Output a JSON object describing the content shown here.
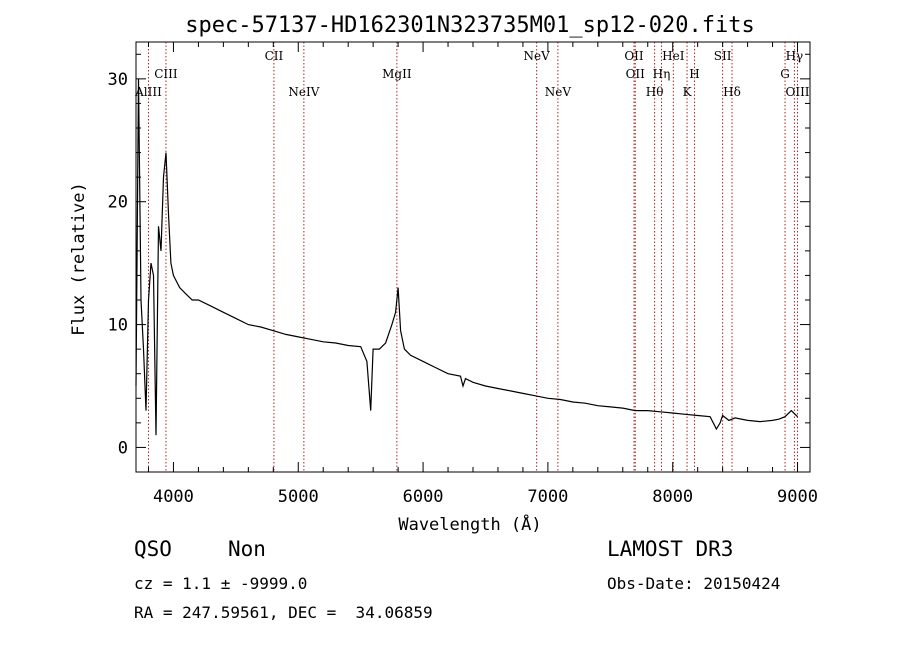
{
  "chart_data": {
    "type": "line",
    "title": "spec-57137-HD162301N323735M01_sp12-020.fits",
    "xlabel": "Wavelength (Å)",
    "ylabel": "Flux (relative)",
    "xlim": [
      3700,
      9100
    ],
    "ylim": [
      -2,
      33
    ],
    "x_ticks": [
      4000,
      5000,
      6000,
      7000,
      8000,
      9000
    ],
    "y_ticks": [
      0,
      10,
      20,
      30
    ],
    "x_tick_labels": [
      "4000",
      "5000",
      "6000",
      "7000",
      "8000",
      "9000"
    ],
    "y_tick_labels": [
      "0",
      "10",
      "20",
      "30"
    ],
    "grid": false,
    "series": [
      {
        "color": "#000000",
        "x": [
          3700,
          3720,
          3740,
          3760,
          3780,
          3800,
          3820,
          3840,
          3860,
          3880,
          3900,
          3920,
          3940,
          3960,
          3980,
          4000,
          4050,
          4100,
          4150,
          4200,
          4300,
          4400,
          4500,
          4600,
          4700,
          4800,
          4900,
          5000,
          5100,
          5200,
          5300,
          5400,
          5500,
          5550,
          5580,
          5600,
          5650,
          5700,
          5750,
          5780,
          5800,
          5820,
          5850,
          5900,
          6000,
          6100,
          6200,
          6300,
          6320,
          6340,
          6400,
          6500,
          6600,
          6700,
          6800,
          6900,
          7000,
          7100,
          7200,
          7300,
          7400,
          7500,
          7600,
          7700,
          7800,
          7900,
          8000,
          8100,
          8200,
          8300,
          8350,
          8380,
          8400,
          8450,
          8500,
          8600,
          8700,
          8800,
          8850,
          8900,
          8950,
          9000
        ],
        "y": [
          5,
          30,
          12,
          8,
          3,
          12,
          15,
          14,
          1,
          18,
          16,
          22,
          24,
          19,
          15,
          14,
          13,
          12.5,
          12,
          12,
          11.5,
          11,
          10.5,
          10,
          9.8,
          9.5,
          9.2,
          9,
          8.8,
          8.6,
          8.5,
          8.3,
          8.2,
          7,
          3,
          8,
          8,
          8.5,
          10,
          11,
          13,
          9.5,
          8,
          7.5,
          7,
          6.5,
          6,
          5.8,
          5,
          5.6,
          5.3,
          5,
          4.8,
          4.6,
          4.4,
          4.2,
          4,
          3.9,
          3.7,
          3.6,
          3.4,
          3.3,
          3.2,
          3,
          3,
          2.9,
          2.8,
          2.7,
          2.6,
          2.5,
          1.5,
          2,
          2.6,
          2.2,
          2.4,
          2.2,
          2.1,
          2.2,
          2.3,
          2.5,
          3,
          2.5
        ]
      }
    ],
    "line_color": "#b22222",
    "lines": [
      {
        "name": "AlIII",
        "x": 3800,
        "row": 3
      },
      {
        "name": "CIII",
        "x": 3940,
        "row": 2
      },
      {
        "name": "CII",
        "x": 4805,
        "row": 1
      },
      {
        "name": "NeIV",
        "x": 5045,
        "row": 3
      },
      {
        "name": "MgII",
        "x": 5790,
        "row": 2
      },
      {
        "name": "NeV",
        "x": 6910,
        "row": 1
      },
      {
        "name": "NeV",
        "x": 7080,
        "row": 3
      },
      {
        "name": "OII",
        "x": 7690,
        "row": 1
      },
      {
        "name": "OII",
        "x": 7700,
        "row": 2
      },
      {
        "name": "Hθ",
        "x": 7855,
        "row": 3
      },
      {
        "name": "Hη",
        "x": 7910,
        "row": 2
      },
      {
        "name": "HeI",
        "x": 8005,
        "row": 1
      },
      {
        "name": "K",
        "x": 8115,
        "row": 3
      },
      {
        "name": "H",
        "x": 8175,
        "row": 2
      },
      {
        "name": "SII",
        "x": 8400,
        "row": 1
      },
      {
        "name": "Hδ",
        "x": 8475,
        "row": 3
      },
      {
        "name": "G",
        "x": 8900,
        "row": 2
      },
      {
        "name": "Hγ",
        "x": 8975,
        "row": 1
      },
      {
        "name": "OIII",
        "x": 9000,
        "row": 3
      }
    ]
  },
  "info": {
    "class_label": "QSO",
    "subclass_label": "Non",
    "cz_label": "cz = 1.1 ± -9999.0",
    "radec_label": "RA = 247.59561, DEC =  34.06859",
    "survey_label": "LAMOST DR3",
    "obsdate_label": "Obs-Date: 20150424"
  }
}
